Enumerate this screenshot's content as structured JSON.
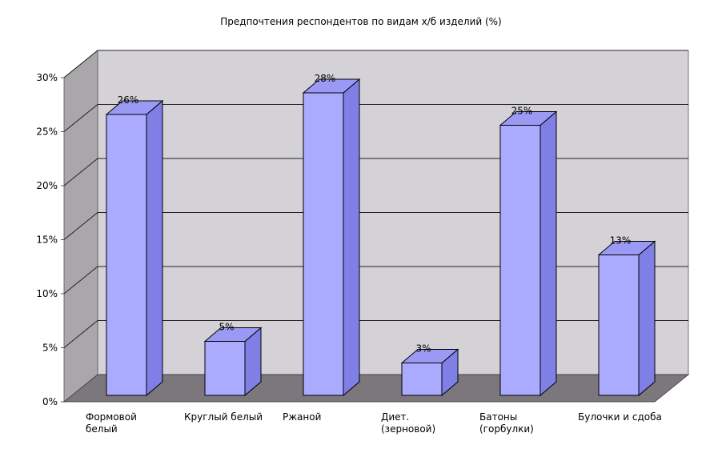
{
  "chart_data": {
    "type": "bar",
    "title": "Предпочтения респондентов по видам х/б изделий (%)",
    "categories": [
      [
        "Формовой",
        "белый"
      ],
      [
        "Круглый белый"
      ],
      [
        "Ржаной"
      ],
      [
        "Диет.",
        "(зерновой)"
      ],
      [
        "Батоны",
        "(горбулки)"
      ],
      [
        "Булочки и сдоба"
      ]
    ],
    "values": [
      26,
      5,
      28,
      3,
      25,
      13
    ],
    "value_labels": [
      "26%",
      "5%",
      "28%",
      "3%",
      "25%",
      "13%"
    ],
    "y_ticks": [
      0,
      5,
      10,
      15,
      20,
      25,
      30
    ],
    "y_tick_labels": [
      "0%",
      "5%",
      "10%",
      "15%",
      "20%",
      "25%",
      "30%"
    ],
    "ylim": [
      0,
      30
    ],
    "grid": true,
    "style": "3d",
    "colors": {
      "bar_front": "#aaaaff",
      "bar_side": "#7f7fe6",
      "bar_top": "#9a9af5",
      "back_wall": "#d4d2d6",
      "side_wall": "#a9a7aa",
      "floor": "#7b777c"
    }
  }
}
